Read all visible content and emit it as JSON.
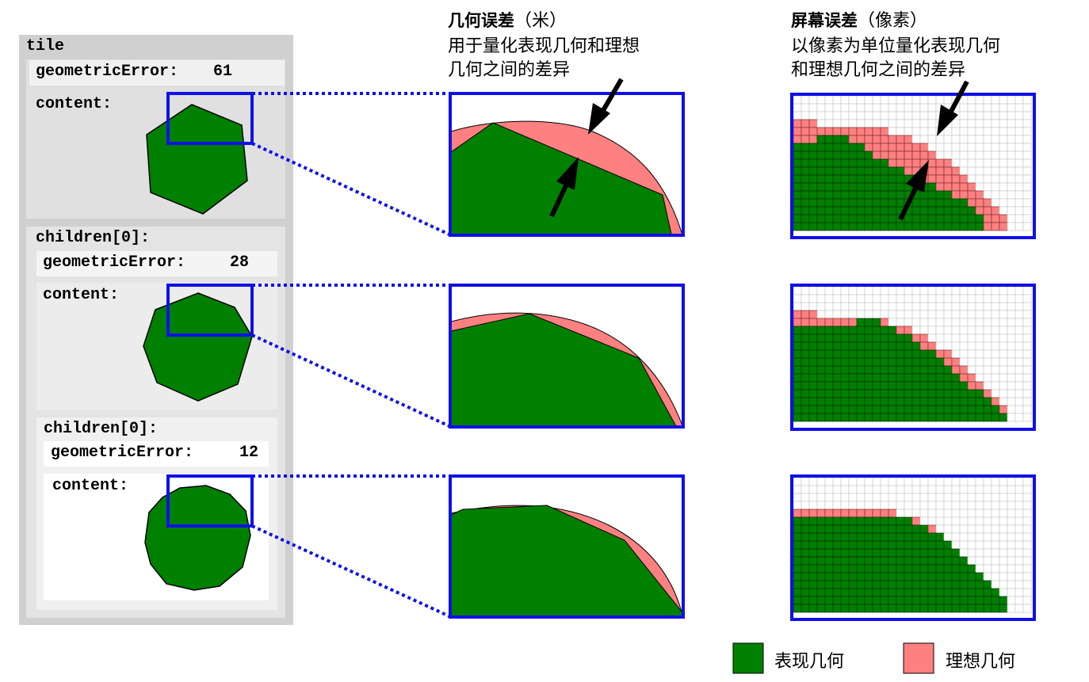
{
  "tiles": [
    {
      "header": "tile",
      "geometric_error_label": "geometricError:",
      "geometric_error_value": "61",
      "content_label": "content:"
    },
    {
      "header": "children[0]:",
      "geometric_error_label": "geometricError:",
      "geometric_error_value": "28",
      "content_label": "content:"
    },
    {
      "header": "children[0]:",
      "geometric_error_label": "geometricError:",
      "geometric_error_value": "12",
      "content_label": "content:"
    }
  ],
  "geometric_section": {
    "title": "几何误差",
    "unit": "（米）",
    "desc_line1": "用于量化表现几何和理想",
    "desc_line2": "几何之间的差异"
  },
  "screen_section": {
    "title": "屏幕误差",
    "unit": "（像素）",
    "desc_line1": "以像素为单位量化表现几何",
    "desc_line2": "和理想几何之间的差异"
  },
  "legend": {
    "rendered_label": "表现几何",
    "ideal_label": "理想几何",
    "rendered_color": "#008000",
    "ideal_color": "#ff8080"
  },
  "colors": {
    "frame": "#1010e8",
    "outer_panel": "#d0d0d0",
    "panel_1": "#e0e0e0",
    "panel_2": "#ececec",
    "panel_3": "#f6f6f6"
  }
}
